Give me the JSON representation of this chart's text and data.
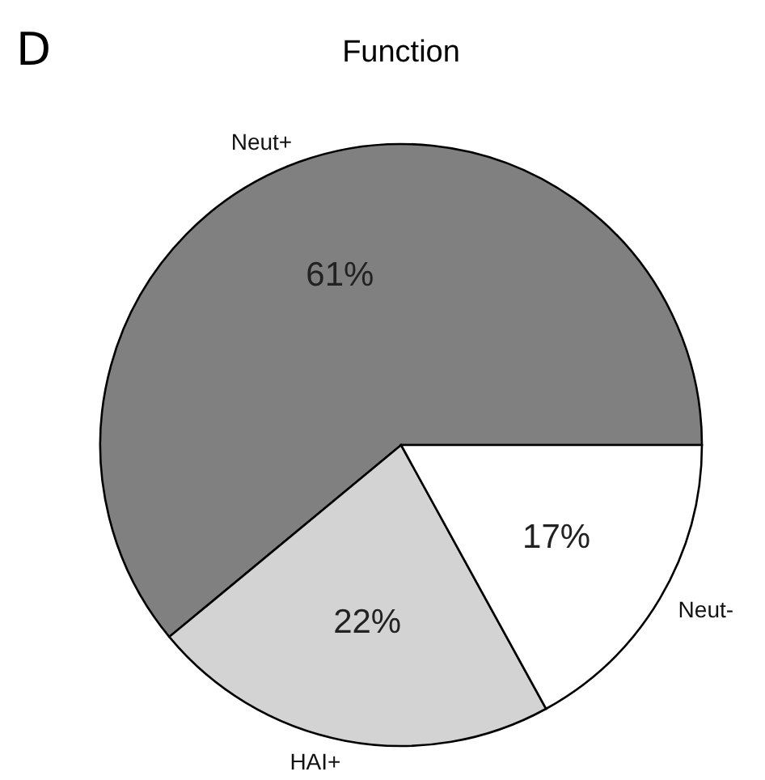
{
  "chart_data": {
    "type": "pie",
    "title": "Function",
    "annotations": [
      "D"
    ],
    "categories": [
      "Neut+",
      "HAI+",
      "Neut-"
    ],
    "values": [
      61,
      22,
      17
    ],
    "colors": [
      "#808080",
      "#d3d3d3",
      "#ffffff"
    ],
    "value_labels": [
      "61%",
      "22%",
      "17%"
    ]
  }
}
